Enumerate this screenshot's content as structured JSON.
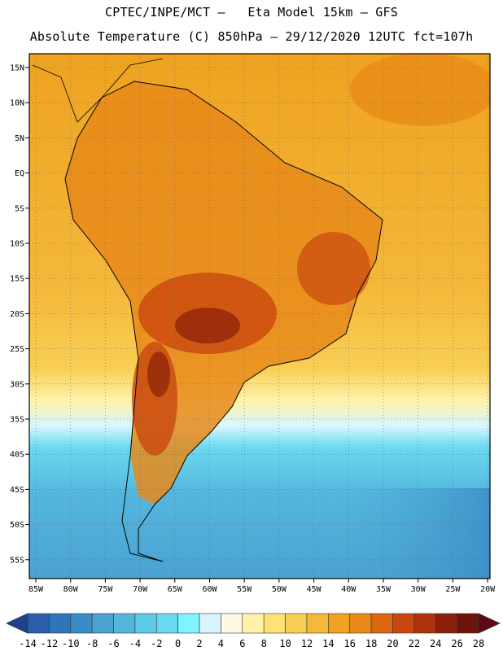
{
  "header": {
    "line1": "CPTEC/INPE/MCT –   Eta Model 15km – GFS",
    "line2": "Absolute Temperature (C) 850hPa – 29/12/2020 12UTC fct=107h"
  },
  "map": {
    "lon_labels": [
      "85W",
      "80W",
      "75W",
      "70W",
      "65W",
      "60W",
      "55W",
      "50W",
      "45W",
      "40W",
      "35W",
      "30W",
      "25W",
      "20W"
    ],
    "lat_labels": [
      "15N",
      "10N",
      "5N",
      "EQ",
      "5S",
      "10S",
      "15S",
      "20S",
      "25S",
      "30S",
      "35S",
      "40S",
      "45S",
      "50S",
      "55S"
    ]
  },
  "colorbar": {
    "labels": [
      "-14",
      "-12",
      "-10",
      "-8",
      "-6",
      "-4",
      "-2",
      "0",
      "2",
      "4",
      "6",
      "8",
      "10",
      "12",
      "14",
      "16",
      "18",
      "20",
      "22",
      "24",
      "26",
      "28"
    ],
    "colors": [
      "#1f3f8f",
      "#2a5ea8",
      "#2e76b9",
      "#3a8cc6",
      "#4aa2d1",
      "#54b6dd",
      "#5ecbe6",
      "#6ad9ef",
      "#7ff3ff",
      "#d6f6ff",
      "#fff8e6",
      "#fff2a8",
      "#fde27a",
      "#f9ce55",
      "#f4b83a",
      "#eea21f",
      "#e8891a",
      "#dc6712",
      "#c9470e",
      "#ad310c",
      "#8a1f0a",
      "#6e1509",
      "#5b0a13"
    ]
  }
}
